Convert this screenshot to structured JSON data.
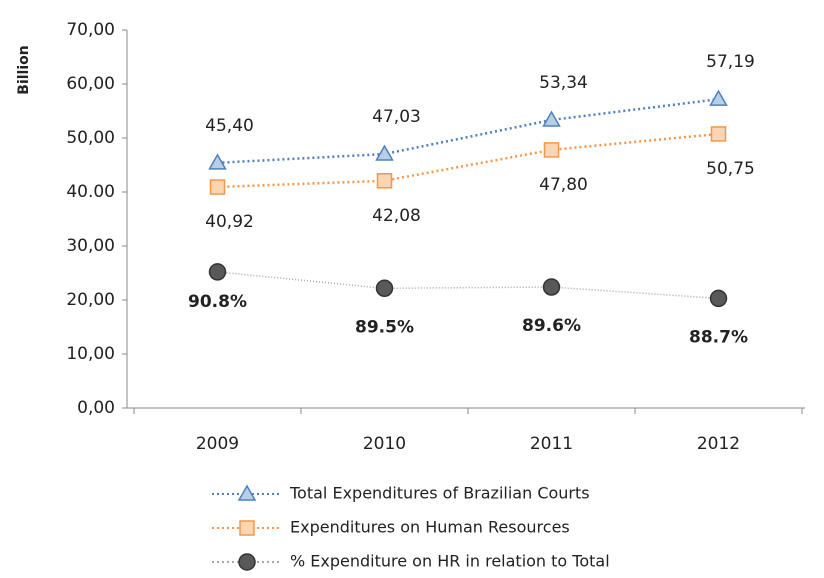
{
  "chart_data": {
    "type": "line",
    "y_label": "Billion",
    "categories": [
      "2009",
      "2010",
      "2011",
      "2012"
    ],
    "series": [
      {
        "name": "Total Expenditures of Brazilian Courts",
        "color": "#4f81bd",
        "marker": "triangle",
        "marker_fill": "#b9cde5",
        "values": [
          45.4,
          47.03,
          53.34,
          57.19
        ],
        "value_labels": [
          "45,40",
          "47,03",
          "53,34",
          "57,19"
        ]
      },
      {
        "name": "Expenditures on Human Resources",
        "color": "#f79646",
        "marker": "square",
        "marker_fill": "#fcd5b4",
        "values": [
          40.92,
          42.08,
          47.8,
          50.75
        ],
        "value_labels": [
          "40,92",
          "42,08",
          "47,80",
          "50,75"
        ]
      },
      {
        "name": "% Expenditure on HR in relation to Total",
        "color": "#a6a6a6",
        "marker": "circle",
        "marker_fill": "#595959",
        "axis": "y2",
        "values": [
          90.8,
          89.5,
          89.6,
          88.7
        ],
        "value_labels": [
          "90.8%",
          "89.5%",
          "89.6%",
          "88.7%"
        ]
      }
    ],
    "ylim": [
      0,
      70
    ],
    "yticks": [
      {
        "value": 0,
        "label": "0,00"
      },
      {
        "value": 10,
        "label": "10,00"
      },
      {
        "value": 20,
        "label": "20,00"
      },
      {
        "value": 30,
        "label": "30,00"
      },
      {
        "value": 40,
        "label": "40.00"
      },
      {
        "value": 50,
        "label": "50,00"
      },
      {
        "value": 60,
        "label": "60,00"
      },
      {
        "value": 70,
        "label": "70,00"
      }
    ],
    "y2lim": [
      80,
      110
    ],
    "legend": "bottom"
  }
}
